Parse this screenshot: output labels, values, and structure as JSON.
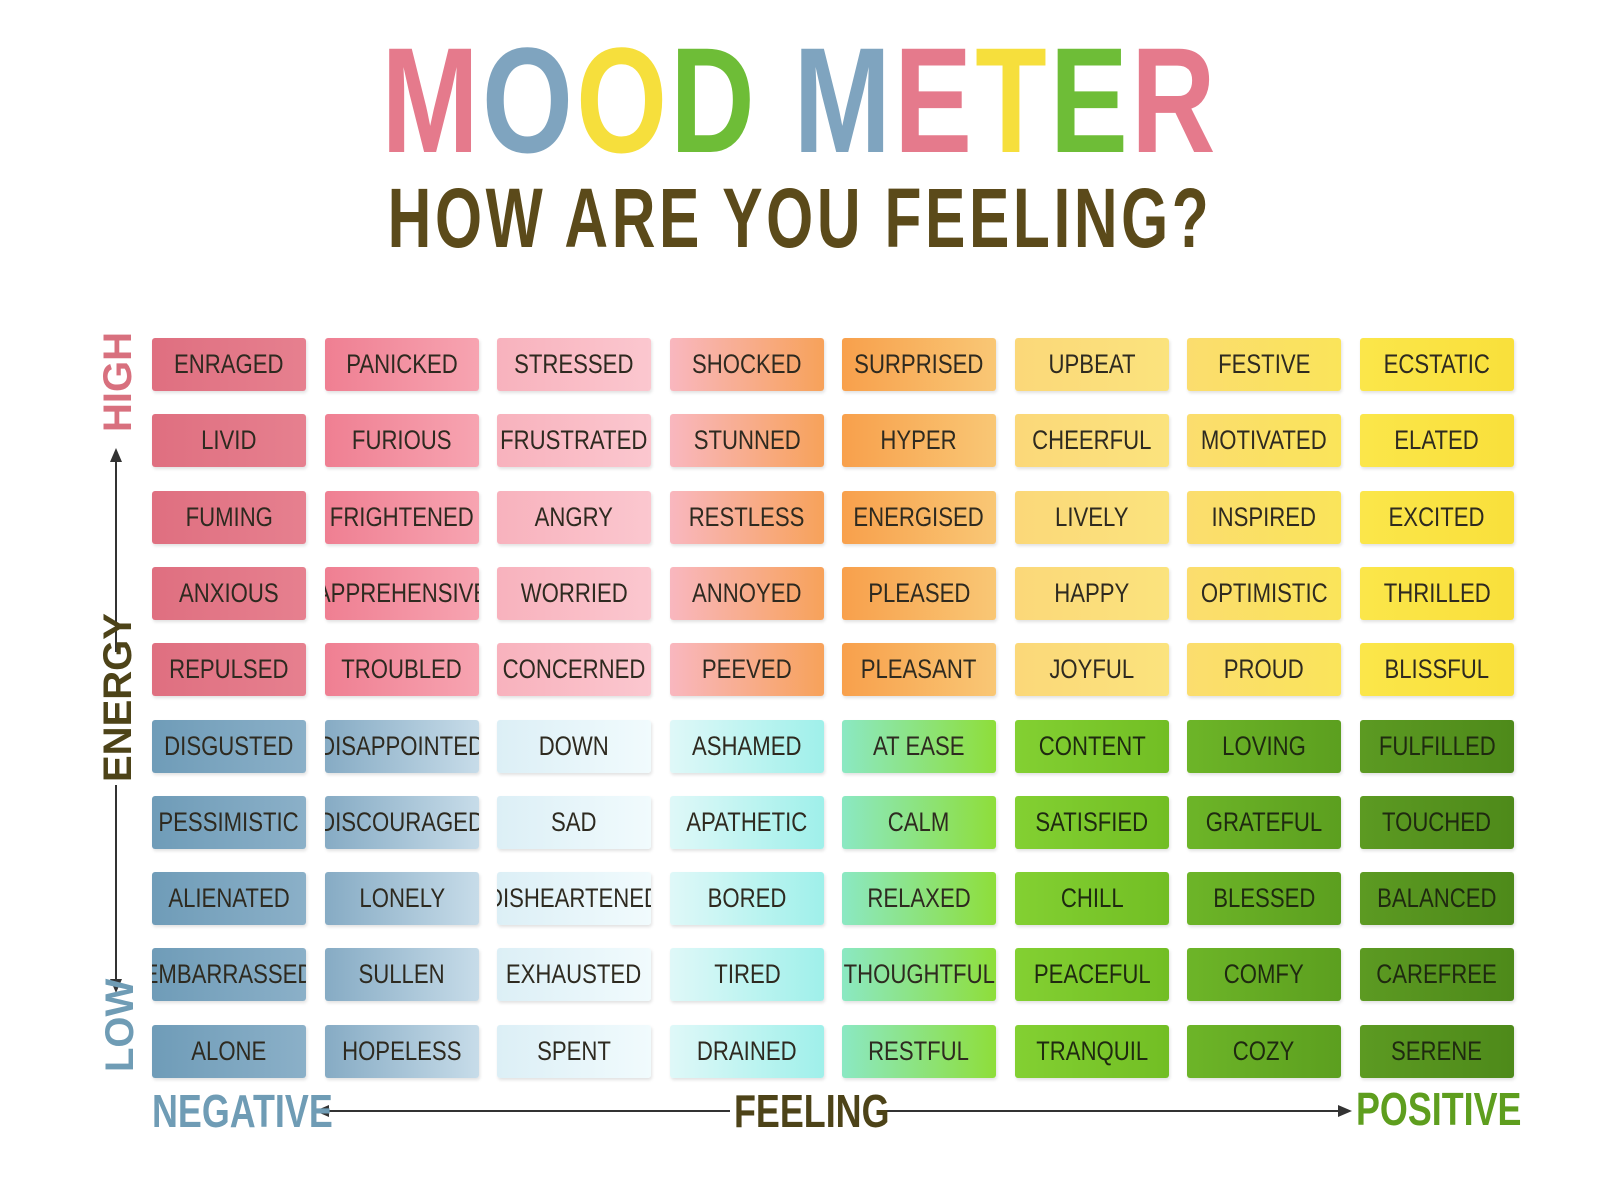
{
  "header": {
    "title_letters": [
      {
        "ch": "M",
        "color": "#e57a8c"
      },
      {
        "ch": "O",
        "color": "#7fa4bf"
      },
      {
        "ch": "O",
        "color": "#f6df3c"
      },
      {
        "ch": "D",
        "color": "#6ebd37"
      },
      {
        "ch": " ",
        "color": "#ffffff"
      },
      {
        "ch": "M",
        "color": "#7fa4bf"
      },
      {
        "ch": "E",
        "color": "#e57a8c"
      },
      {
        "ch": "T",
        "color": "#f6df3c"
      },
      {
        "ch": "E",
        "color": "#6ebd37"
      },
      {
        "ch": "R",
        "color": "#e57a8c"
      }
    ],
    "subtitle": "HOW ARE YOU FEELING?"
  },
  "axes": {
    "high": "HIGH",
    "low": "LOW",
    "energy": "ENERGY",
    "negative": "NEGATIVE",
    "positive": "POSITIVE",
    "feeling": "FEELING",
    "colors": {
      "high": "#d8707e",
      "low": "#6f9cb5",
      "energy": "#4d4318",
      "negative": "#6f9cb5",
      "positive": "#5e9e1e",
      "feeling": "#4d4318"
    }
  },
  "grid": {
    "rows": [
      [
        "ENRAGED",
        "PANICKED",
        "STRESSED",
        "SHOCKED",
        "SURPRISED",
        "UPBEAT",
        "FESTIVE",
        "ECSTATIC"
      ],
      [
        "LIVID",
        "FURIOUS",
        "FRUSTRATED",
        "STUNNED",
        "HYPER",
        "CHEERFUL",
        "MOTIVATED",
        "ELATED"
      ],
      [
        "FUMING",
        "FRIGHTENED",
        "ANGRY",
        "RESTLESS",
        "ENERGISED",
        "LIVELY",
        "INSPIRED",
        "EXCITED"
      ],
      [
        "ANXIOUS",
        "APPREHENSIVE",
        "WORRIED",
        "ANNOYED",
        "PLEASED",
        "HAPPY",
        "OPTIMISTIC",
        "THRILLED"
      ],
      [
        "REPULSED",
        "TROUBLED",
        "CONCERNED",
        "PEEVED",
        "PLEASANT",
        "JOYFUL",
        "PROUD",
        "BLISSFUL"
      ],
      [
        "DISGUSTED",
        "DISAPPOINTED",
        "DOWN",
        "ASHAMED",
        "AT EASE",
        "CONTENT",
        "LOVING",
        "FULFILLED"
      ],
      [
        "PESSIMISTIC",
        "DISCOURAGED",
        "SAD",
        "APATHETIC",
        "CALM",
        "SATISFIED",
        "GRATEFUL",
        "TOUCHED"
      ],
      [
        "ALIENATED",
        "LONELY",
        "DISHEARTENED",
        "BORED",
        "RELAXED",
        "CHILL",
        "BLESSED",
        "BALANCED"
      ],
      [
        "EMBARRASSED",
        "SULLEN",
        "EXHAUSTED",
        "TIRED",
        "THOUGHTFUL",
        "PEACEFUL",
        "COMFY",
        "CAREFREE"
      ],
      [
        "ALONE",
        "HOPELESS",
        "SPENT",
        "DRAINED",
        "RESTFUL",
        "TRANQUIL",
        "COZY",
        "SERENE"
      ]
    ],
    "top_colors": [
      [
        "#df6f80",
        "#e6808f"
      ],
      [
        "#ef7f92",
        "#f7a4b1"
      ],
      [
        "#f8b2bd",
        "#fbc7cf"
      ],
      [
        "#f9b7bf",
        "#f7a25a"
      ],
      [
        "#f8a04c",
        "#f9c775"
      ],
      [
        "#fbd879",
        "#fbe37d"
      ],
      [
        "#fbdd6e",
        "#fae45a"
      ],
      [
        "#fbe64a",
        "#f9e03b"
      ]
    ],
    "bottom_colors": [
      [
        "#6f9cb8",
        "#8bb0c8"
      ],
      [
        "#86abc4",
        "#c7dce9"
      ],
      [
        "#dceff6",
        "#f1fbfd"
      ],
      [
        "#dff8f8",
        "#9ff0ea"
      ],
      [
        "#8be8c3",
        "#8ede3a"
      ],
      [
        "#83d032",
        "#72be24"
      ],
      [
        "#6db528",
        "#5c9f1f"
      ],
      [
        "#5c9a22",
        "#4e8a1a"
      ]
    ]
  }
}
